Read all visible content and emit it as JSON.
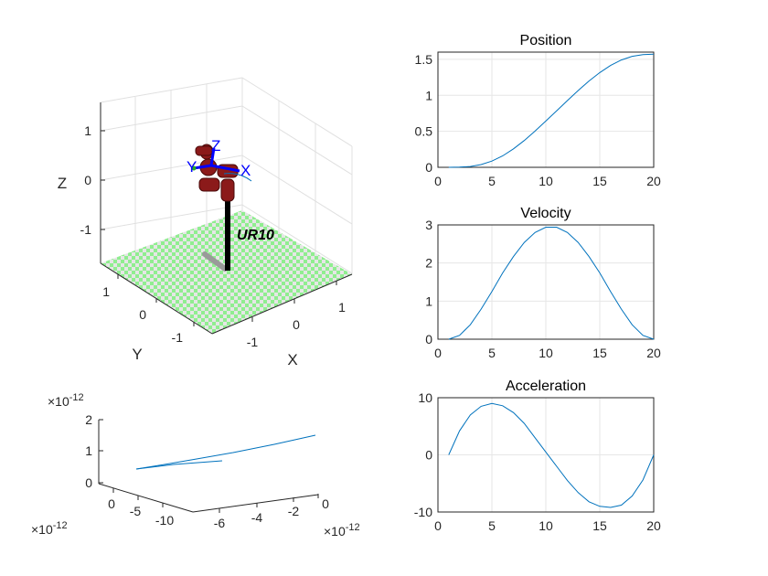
{
  "chart_data": [
    {
      "type": "line",
      "title": "Position",
      "x": [
        1,
        2,
        3,
        4,
        5,
        6,
        7,
        8,
        9,
        10,
        11,
        12,
        13,
        14,
        15,
        16,
        17,
        18,
        19,
        20
      ],
      "values": [
        0,
        0.002,
        0.012,
        0.038,
        0.086,
        0.159,
        0.256,
        0.372,
        0.503,
        0.643,
        0.785,
        0.927,
        1.067,
        1.199,
        1.316,
        1.414,
        1.491,
        1.541,
        1.565,
        1.571
      ],
      "xlim": [
        0,
        20
      ],
      "ylim": [
        0,
        1.6
      ],
      "xticks": [
        "0",
        "5",
        "10",
        "15",
        "20"
      ],
      "yticks": [
        "0",
        "0.5",
        "1",
        "1.5"
      ],
      "grid": true,
      "color": "#0072BD"
    },
    {
      "type": "line",
      "title": "Velocity",
      "x": [
        1,
        2,
        3,
        4,
        5,
        6,
        7,
        8,
        9,
        10,
        11,
        12,
        13,
        14,
        15,
        16,
        17,
        18,
        19,
        20
      ],
      "values": [
        0,
        0.1,
        0.38,
        0.79,
        1.25,
        1.74,
        2.17,
        2.54,
        2.8,
        2.94,
        2.94,
        2.8,
        2.54,
        2.17,
        1.74,
        1.25,
        0.79,
        0.38,
        0.1,
        0
      ],
      "xlim": [
        0,
        20
      ],
      "ylim": [
        0,
        3
      ],
      "xticks": [
        "0",
        "5",
        "10",
        "15",
        "20"
      ],
      "yticks": [
        "0",
        "1",
        "2",
        "3"
      ],
      "grid": true,
      "color": "#0072BD"
    },
    {
      "type": "line",
      "title": "Acceleration",
      "x": [
        1,
        2,
        3,
        4,
        5,
        6,
        7,
        8,
        9,
        10,
        11,
        12,
        13,
        14,
        15,
        16,
        17,
        18,
        19,
        20
      ],
      "values": [
        0,
        4.2,
        7.0,
        8.5,
        9.0,
        8.6,
        7.4,
        5.5,
        3.0,
        0.5,
        -2.0,
        -4.5,
        -6.6,
        -8.2,
        -9.0,
        -9.2,
        -8.8,
        -7.2,
        -4.4,
        0
      ],
      "xlim": [
        0,
        20
      ],
      "ylim": [
        -10,
        10
      ],
      "xticks": [
        "0",
        "5",
        "10",
        "15",
        "20"
      ],
      "yticks": [
        "-10",
        "0",
        "10"
      ],
      "grid": true,
      "color": "#0072BD"
    }
  ],
  "robot_plot": {
    "label": "UR10",
    "xlabel": "X",
    "ylabel": "Y",
    "zlabel": "Z",
    "xticks": [
      "-1",
      "0",
      "1"
    ],
    "yticks": [
      "1",
      "0",
      "-1"
    ],
    "zticks": [
      "1",
      "0",
      "-1"
    ],
    "frame_axes": [
      "X",
      "Y",
      "Z"
    ],
    "floor_colors": [
      "#90EE90",
      "#E6E6E6"
    ],
    "link_color": "#8B1A1A",
    "frame_color": "#0000FF"
  },
  "path_plot": {
    "z_exponent_label": "×10",
    "z_exponent": "-12",
    "y_exponent_label": "×10",
    "y_exponent": "-12",
    "x_exponent_label": "×10",
    "x_exponent": "-12",
    "zticks": [
      "2",
      "1",
      "0"
    ],
    "yticks": [
      "0",
      "-5",
      "-10"
    ],
    "xticks": [
      "-6",
      "-4",
      "-2",
      "0"
    ],
    "color": "#0072BD"
  }
}
